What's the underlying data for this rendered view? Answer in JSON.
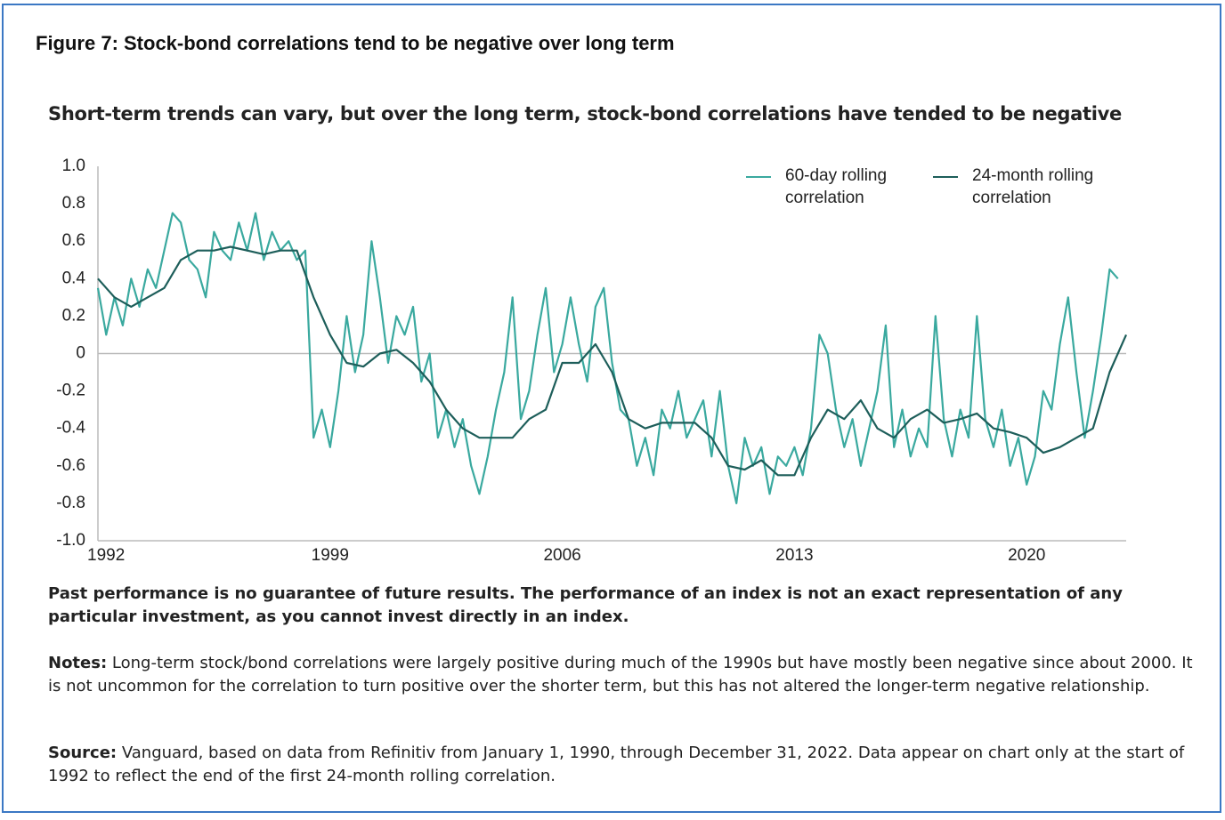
{
  "chart_data": {
    "type": "line",
    "title": "Figure 7: Stock-bond correlations tend to be negative over long term",
    "subtitle": "Short-term trends can vary, but over the long term, stock-bond correlations have tended to be negative",
    "xlim": [
      1992,
      2023
    ],
    "xticks": [
      1992,
      1999,
      2006,
      2013,
      2020
    ],
    "ylim": [
      -1,
      1
    ],
    "yticks": [
      {
        "value": 1,
        "label": "1.0"
      },
      0.8,
      0.6,
      0.4,
      0.2,
      0,
      -0.2,
      -0.4,
      -0.6,
      -0.8,
      {
        "value": -1,
        "label": "-1.0"
      }
    ],
    "series": [
      {
        "name": "60-day rolling correlation",
        "color": "#3aa99f",
        "x": [
          1992,
          1992.25,
          1992.5,
          1992.75,
          1993,
          1993.25,
          1993.5,
          1993.75,
          1994,
          1994.25,
          1994.5,
          1994.75,
          1995,
          1995.25,
          1995.5,
          1995.75,
          1996,
          1996.25,
          1996.5,
          1996.75,
          1997,
          1997.25,
          1997.5,
          1997.75,
          1998,
          1998.25,
          1998.5,
          1998.75,
          1999,
          1999.25,
          1999.5,
          1999.75,
          2000,
          2000.25,
          2000.5,
          2000.75,
          2001,
          2001.25,
          2001.5,
          2001.75,
          2002,
          2002.25,
          2002.5,
          2002.75,
          2003,
          2003.25,
          2003.5,
          2003.75,
          2004,
          2004.25,
          2004.5,
          2004.75,
          2005,
          2005.25,
          2005.5,
          2005.75,
          2006,
          2006.25,
          2006.5,
          2006.75,
          2007,
          2007.25,
          2007.5,
          2007.75,
          2008,
          2008.25,
          2008.5,
          2008.75,
          2009,
          2009.25,
          2009.5,
          2009.75,
          2010,
          2010.25,
          2010.5,
          2010.75,
          2011,
          2011.25,
          2011.5,
          2011.75,
          2012,
          2012.25,
          2012.5,
          2012.75,
          2013,
          2013.25,
          2013.5,
          2013.75,
          2014,
          2014.25,
          2014.5,
          2014.75,
          2015,
          2015.25,
          2015.5,
          2015.75,
          2016,
          2016.25,
          2016.5,
          2016.75,
          2017,
          2017.25,
          2017.5,
          2017.75,
          2018,
          2018.25,
          2018.5,
          2018.75,
          2019,
          2019.25,
          2019.5,
          2019.75,
          2020,
          2020.25,
          2020.5,
          2020.75,
          2021,
          2021.25,
          2021.5,
          2021.75,
          2022,
          2022.25,
          2022.5,
          2022.75
        ],
        "values": [
          0.35,
          0.1,
          0.3,
          0.15,
          0.4,
          0.25,
          0.45,
          0.35,
          0.55,
          0.75,
          0.7,
          0.5,
          0.45,
          0.3,
          0.65,
          0.55,
          0.5,
          0.7,
          0.55,
          0.75,
          0.5,
          0.65,
          0.55,
          0.6,
          0.5,
          0.55,
          -0.45,
          -0.3,
          -0.5,
          -0.2,
          0.2,
          -0.1,
          0.1,
          0.6,
          0.3,
          -0.05,
          0.2,
          0.1,
          0.25,
          -0.15,
          0.0,
          -0.45,
          -0.3,
          -0.5,
          -0.35,
          -0.6,
          -0.75,
          -0.55,
          -0.3,
          -0.1,
          0.3,
          -0.35,
          -0.2,
          0.1,
          0.35,
          -0.1,
          0.05,
          0.3,
          0.05,
          -0.15,
          0.25,
          0.35,
          -0.05,
          -0.3,
          -0.35,
          -0.6,
          -0.45,
          -0.65,
          -0.3,
          -0.4,
          -0.2,
          -0.45,
          -0.35,
          -0.25,
          -0.55,
          -0.2,
          -0.6,
          -0.8,
          -0.45,
          -0.6,
          -0.5,
          -0.75,
          -0.55,
          -0.6,
          -0.5,
          -0.65,
          -0.4,
          0.1,
          0.0,
          -0.3,
          -0.5,
          -0.35,
          -0.6,
          -0.4,
          -0.2,
          0.15,
          -0.5,
          -0.3,
          -0.55,
          -0.4,
          -0.5,
          0.2,
          -0.35,
          -0.55,
          -0.3,
          -0.45,
          0.2,
          -0.35,
          -0.5,
          -0.3,
          -0.6,
          -0.45,
          -0.7,
          -0.55,
          -0.2,
          -0.3,
          0.05,
          0.3,
          -0.1,
          -0.45,
          -0.2,
          0.1,
          0.45,
          0.4
        ]
      },
      {
        "name": "24-month rolling correlation",
        "color": "#1d5e5a",
        "x": [
          1992,
          1992.5,
          1993,
          1993.5,
          1994,
          1994.5,
          1995,
          1995.5,
          1996,
          1996.5,
          1997,
          1997.5,
          1998,
          1998.5,
          1999,
          1999.5,
          2000,
          2000.5,
          2001,
          2001.5,
          2002,
          2002.5,
          2003,
          2003.5,
          2004,
          2004.5,
          2005,
          2005.5,
          2006,
          2006.5,
          2007,
          2007.5,
          2008,
          2008.5,
          2009,
          2009.5,
          2010,
          2010.5,
          2011,
          2011.5,
          2012,
          2012.5,
          2013,
          2013.5,
          2014,
          2014.5,
          2015,
          2015.5,
          2016,
          2016.5,
          2017,
          2017.5,
          2018,
          2018.5,
          2019,
          2019.5,
          2020,
          2020.5,
          2021,
          2021.5,
          2022,
          2022.5,
          2023
        ],
        "values": [
          0.4,
          0.3,
          0.25,
          0.3,
          0.35,
          0.5,
          0.55,
          0.55,
          0.57,
          0.55,
          0.53,
          0.55,
          0.55,
          0.3,
          0.1,
          -0.05,
          -0.07,
          0.0,
          0.02,
          -0.05,
          -0.15,
          -0.3,
          -0.4,
          -0.45,
          -0.45,
          -0.45,
          -0.35,
          -0.3,
          -0.05,
          -0.05,
          0.05,
          -0.1,
          -0.35,
          -0.4,
          -0.37,
          -0.37,
          -0.37,
          -0.45,
          -0.6,
          -0.62,
          -0.57,
          -0.65,
          -0.65,
          -0.45,
          -0.3,
          -0.35,
          -0.25,
          -0.4,
          -0.45,
          -0.35,
          -0.3,
          -0.37,
          -0.35,
          -0.32,
          -0.4,
          -0.42,
          -0.45,
          -0.53,
          -0.5,
          -0.45,
          -0.4,
          -0.1,
          0.1
        ]
      }
    ],
    "disclaimer": "Past performance is no guarantee of future results. The performance of an index is not an exact representation of any particular investment, as you cannot invest directly in an index.",
    "notes_label": "Notes:",
    "notes_text": "Long-term stock/bond correlations were largely positive during much of the 1990s but have mostly been negative since about 2000. It is not uncommon for the correlation to turn positive over the shorter term, but this has not altered the longer-term negative relationship.",
    "source_label": "Source:",
    "source_text": "Vanguard, based on data from Refinitiv from January 1, 1990, through December 31, 2022. Data appear on chart only at the start of 1992 to reflect the end of the first 24-month rolling correlation."
  }
}
